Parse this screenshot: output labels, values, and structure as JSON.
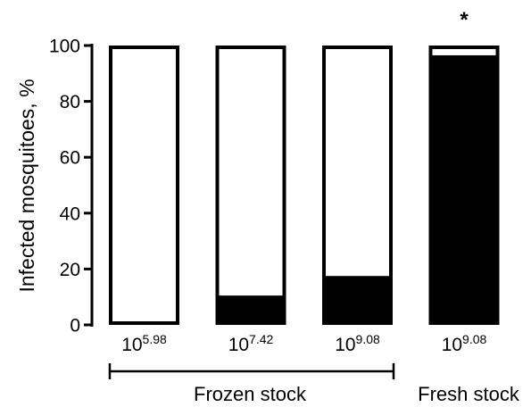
{
  "chart_data": {
    "type": "bar",
    "stacked": true,
    "ylabel": "Infected mosquitoes, %",
    "ylim": [
      0,
      100
    ],
    "yticks": [
      0,
      20,
      40,
      60,
      80,
      100
    ],
    "grid": false,
    "categories": [
      {
        "base": "10",
        "exp": "5.98"
      },
      {
        "base": "10",
        "exp": "7.42"
      },
      {
        "base": "10",
        "exp": "9.08"
      },
      {
        "base": "10",
        "exp": "9.08"
      }
    ],
    "values": [
      0,
      10.5,
      17.5,
      96.5
    ],
    "significance": [
      "",
      "",
      "",
      "*"
    ],
    "groups": [
      {
        "label": "Frozen stock",
        "bracket": true
      },
      {
        "label": "Fresh stock",
        "bracket": false
      }
    ],
    "colors": {
      "infected": "#000000",
      "uninfected": "#ffffff",
      "outline": "#000000"
    }
  }
}
